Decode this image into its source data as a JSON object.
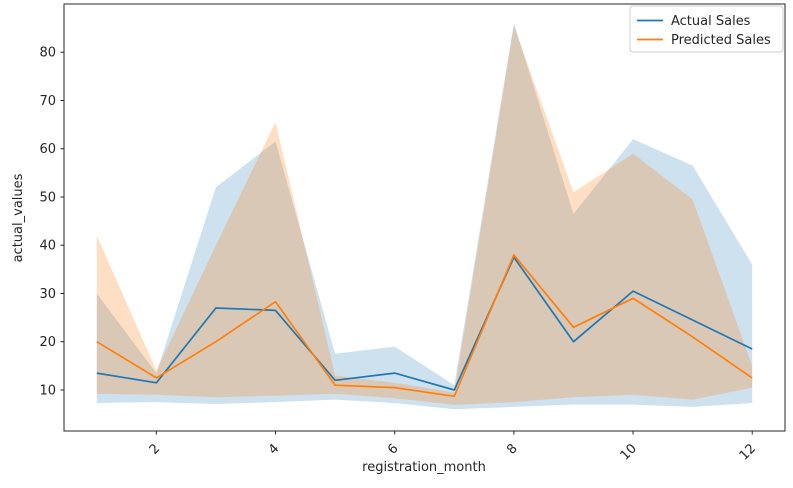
{
  "figure": {
    "background": "#ffffff"
  },
  "chart_data": {
    "type": "line",
    "title": "",
    "xlabel": "registration_month",
    "ylabel": "actual_values",
    "x": [
      1,
      2,
      3,
      4,
      5,
      6,
      7,
      8,
      9,
      10,
      11,
      12
    ],
    "xticks": [
      2,
      4,
      6,
      8,
      10,
      12
    ],
    "yticks": [
      10,
      20,
      30,
      40,
      50,
      60,
      70,
      80
    ],
    "xlim": [
      0.45,
      12.55
    ],
    "ylim": [
      1.5,
      90
    ],
    "grid": false,
    "legend_position": "upper right",
    "xtick_rotation": 45,
    "series": [
      {
        "name": "Actual Sales",
        "color": "#1f77b4",
        "band_fill": "rgba(31,119,180,0.22)",
        "values": [
          13.5,
          11.5,
          27,
          26.5,
          12,
          13.5,
          10,
          37.5,
          20,
          30.5,
          24.5,
          18.5
        ],
        "band_upper": [
          30,
          13.5,
          52,
          61.5,
          17.5,
          19,
          11,
          86,
          46.5,
          62,
          56.5,
          36
        ],
        "band_lower": [
          7.3,
          7.5,
          7.1,
          7.5,
          8,
          7.3,
          6,
          6.5,
          7,
          7,
          6.5,
          7.3
        ]
      },
      {
        "name": "Predicted Sales",
        "color": "#ff7f0e",
        "band_fill": "rgba(255,127,14,0.25)",
        "values": [
          20,
          12.5,
          20,
          28.3,
          11,
          10.5,
          8.7,
          38,
          23,
          29,
          21,
          12.5
        ],
        "band_upper": [
          42,
          14,
          40,
          65.5,
          13,
          11.5,
          9.5,
          85.5,
          51,
          59,
          49.5,
          15
        ],
        "band_lower": [
          9.2,
          9,
          8.5,
          8.8,
          9.2,
          8.3,
          6.9,
          7.5,
          8.5,
          9,
          8,
          10.5
        ]
      }
    ]
  }
}
